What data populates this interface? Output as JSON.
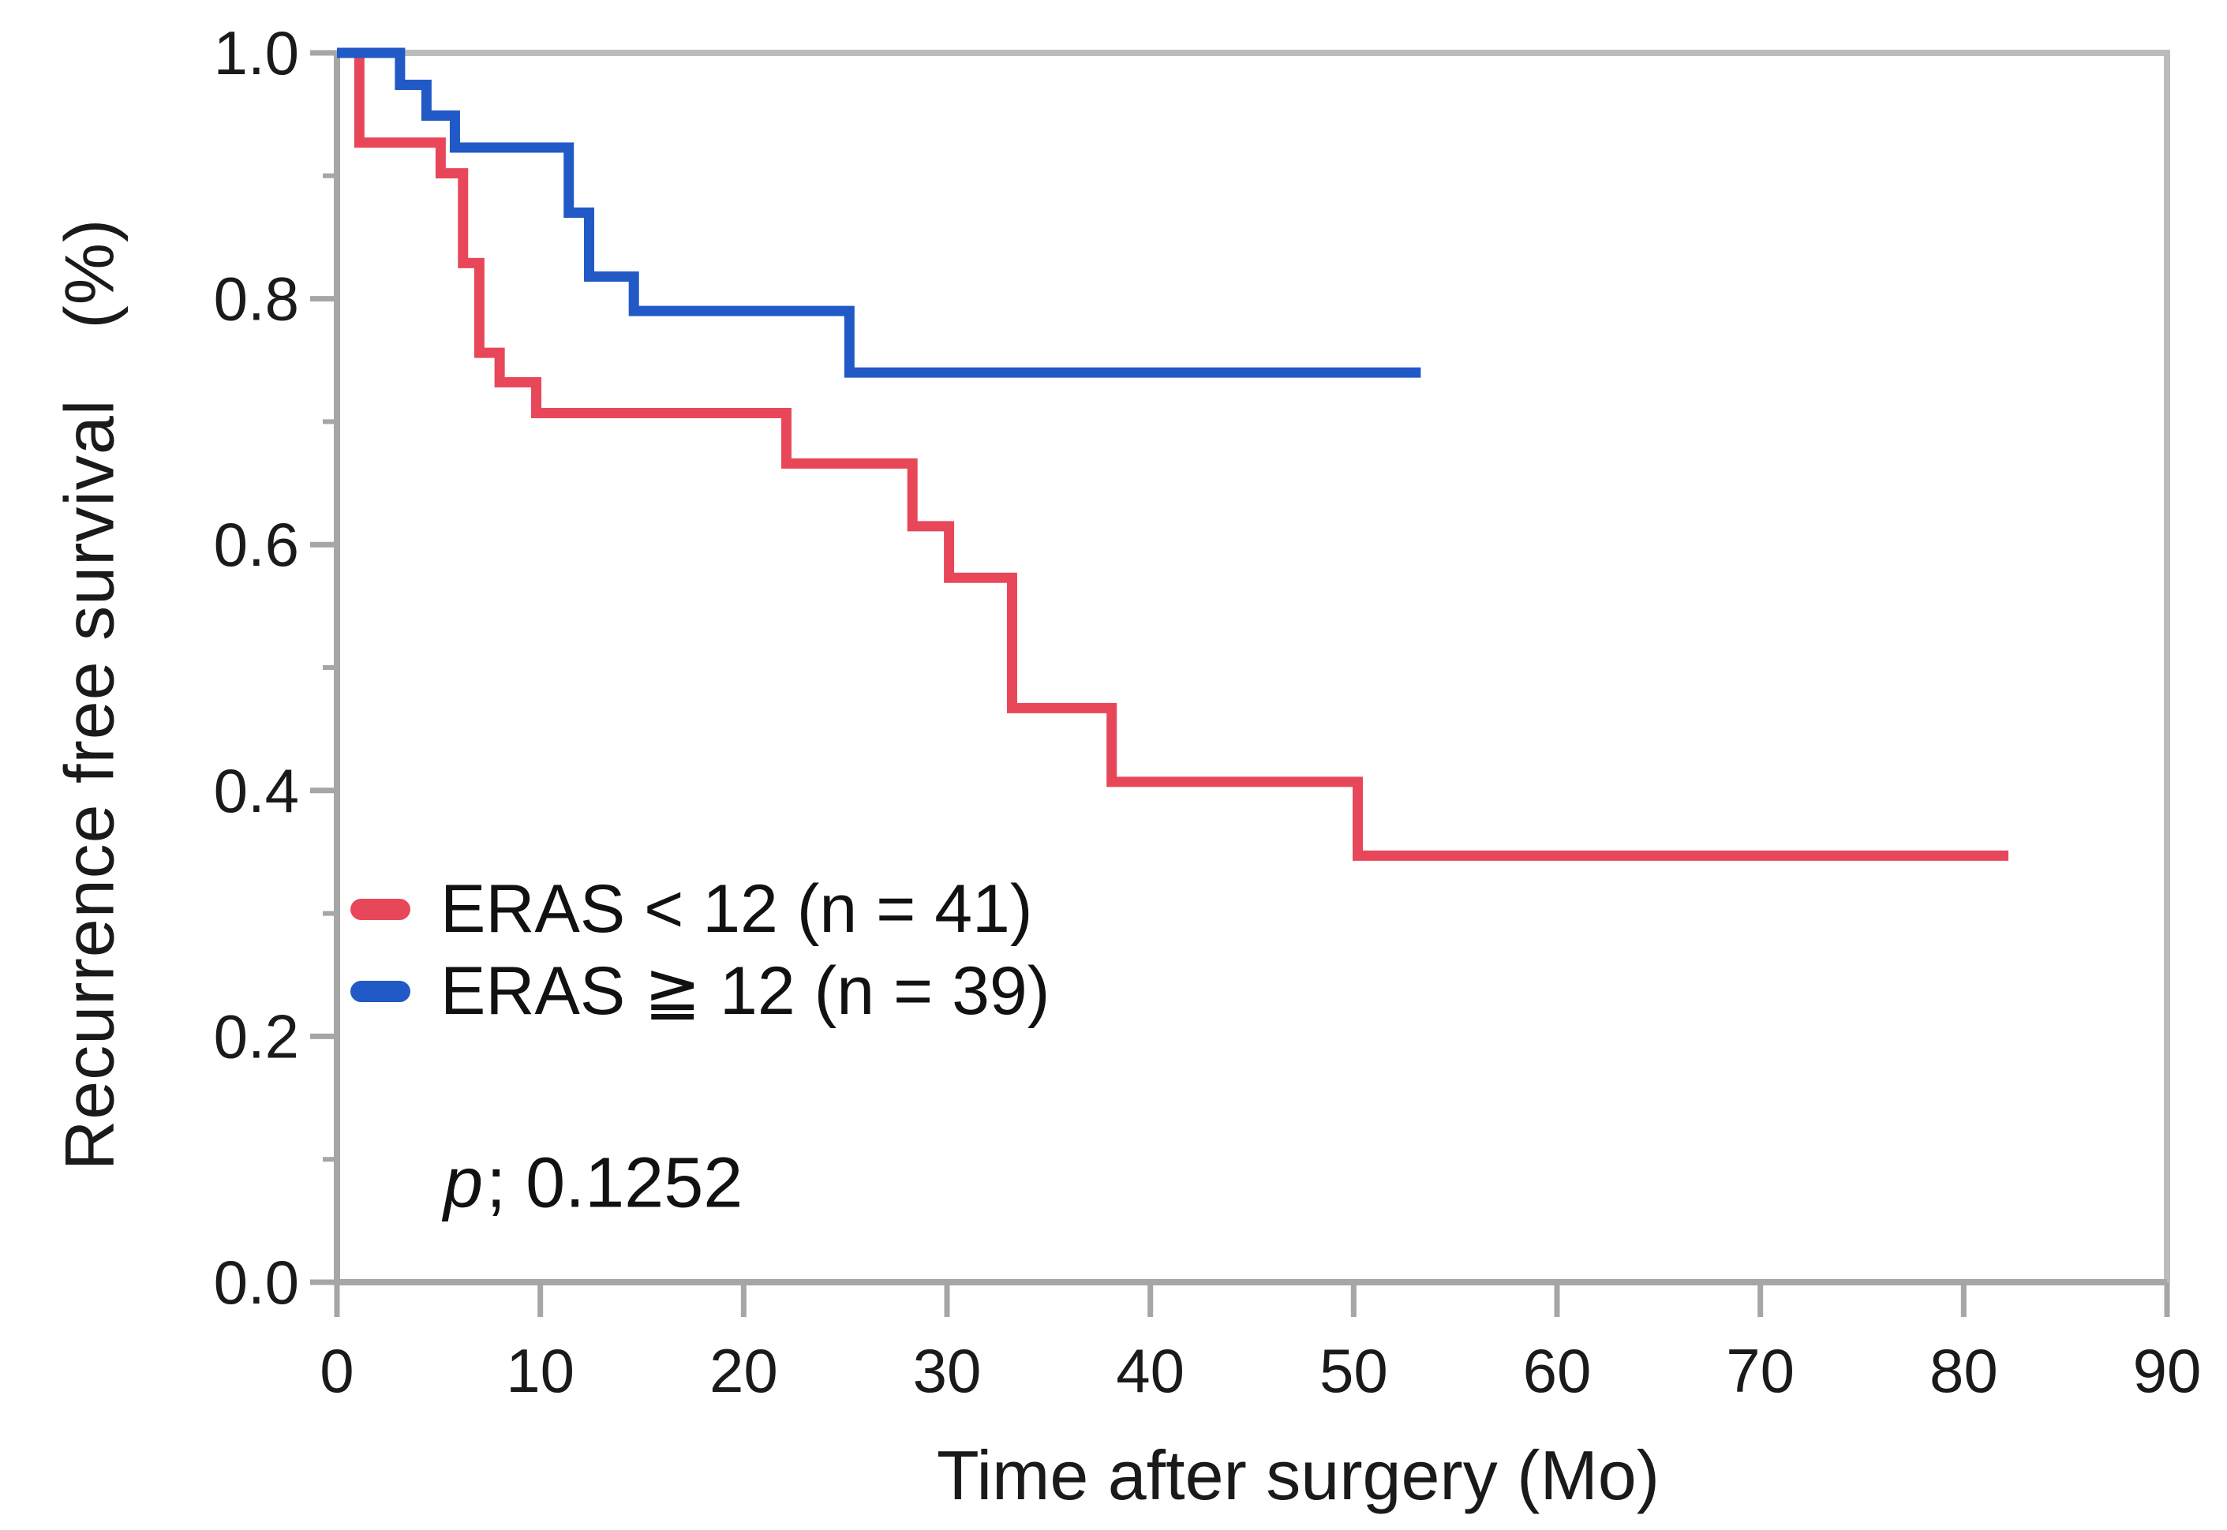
{
  "chart_data": {
    "type": "line",
    "subtype": "kaplan_meier_step",
    "title": "",
    "xlabel": "Time after surgery (Mo)",
    "ylabel": "Recurrence free survival　(%)",
    "xlim": [
      0,
      90
    ],
    "ylim": [
      0.0,
      1.0
    ],
    "xticks": [
      0,
      10,
      20,
      30,
      40,
      50,
      60,
      70,
      80,
      90
    ],
    "ytick_labels": [
      "1.0",
      "0.8",
      "0.6",
      "0.4",
      "0.2",
      "0.0"
    ],
    "ytick_values": [
      1.0,
      0.8,
      0.6,
      0.4,
      0.2,
      0.0
    ],
    "yticks_minor": [
      0.9,
      0.7,
      0.5,
      0.3,
      0.1
    ],
    "grid": false,
    "legend_position": "inside-lower-left",
    "reference_line_y": 1.0,
    "axis_color": "#a6a6a6",
    "frame_color": "#bcbcbc",
    "text_color": "#1a1a1a",
    "series": [
      {
        "name": "ERAS < 12 (n = 41)",
        "n": 41,
        "color": "#e8475a",
        "steps": [
          [
            0,
            1.0
          ],
          [
            1.1,
            0.927
          ],
          [
            5.1,
            0.902
          ],
          [
            6.2,
            0.829
          ],
          [
            7.0,
            0.756
          ],
          [
            8.0,
            0.732
          ],
          [
            9.8,
            0.707
          ],
          [
            22.1,
            0.666
          ],
          [
            28.3,
            0.615
          ],
          [
            30.1,
            0.573
          ],
          [
            33.2,
            0.467
          ],
          [
            38.1,
            0.407
          ],
          [
            50.2,
            0.347
          ]
        ],
        "end_month": 82.2
      },
      {
        "name": "ERAS ≧ 12 (n = 39)",
        "n": 39,
        "color": "#2159c6",
        "steps": [
          [
            0,
            1.0
          ],
          [
            3.1,
            0.974
          ],
          [
            4.4,
            0.949
          ],
          [
            5.8,
            0.923
          ],
          [
            11.4,
            0.87
          ],
          [
            12.4,
            0.818
          ],
          [
            14.6,
            0.79
          ],
          [
            25.2,
            0.74
          ]
        ],
        "end_month": 53.3
      }
    ],
    "annotations": {
      "p_italic": "p",
      "p_text": "; 0.1252"
    }
  }
}
